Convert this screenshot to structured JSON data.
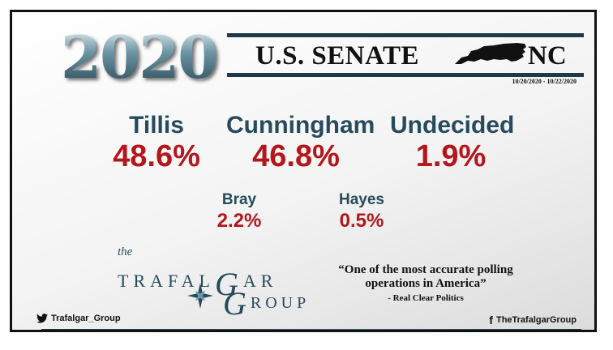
{
  "header": {
    "year": "2020",
    "title": "U.S. SENATE",
    "state": "NC",
    "date_range": "10/20/2020 - 10/22/2020"
  },
  "candidates": [
    {
      "name": "Tillis",
      "percent": "48.6%"
    },
    {
      "name": "Cunningham",
      "percent": "46.8%"
    },
    {
      "name": "Undecided",
      "percent": "1.9%"
    },
    {
      "name": "Bray",
      "percent": "2.2%"
    },
    {
      "name": "Hayes",
      "percent": "0.5%"
    }
  ],
  "logo": {
    "the": "the",
    "line1": "TRAFAL",
    "line1_swash": "G",
    "line1_end": "AR",
    "line2": "ROUP",
    "line2_swash": "G"
  },
  "quote": {
    "text": "“One of the most accurate polling operations in America”",
    "source": "- Real Clear Politics"
  },
  "social": {
    "twitter": "Trafalgar_Group",
    "facebook": "TheTrafalgarGroup"
  },
  "colors": {
    "name": "#264b5c",
    "percent": "#b3161b",
    "band": "#1f3a46"
  },
  "icons": {
    "twitter": "twitter-bird-icon",
    "facebook": "facebook-f-icon",
    "state": "north-carolina-map-icon",
    "logo": "compass-star-icon"
  }
}
